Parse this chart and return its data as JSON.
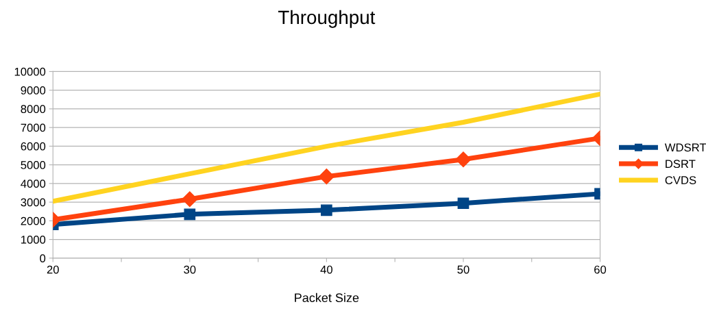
{
  "chart_data": {
    "type": "line",
    "title": "Throughput",
    "xlabel": "Packet Size",
    "x": [
      20,
      30,
      40,
      50,
      60
    ],
    "series": [
      {
        "name": "WDSRT",
        "color": "#004586",
        "marker": "square",
        "values": [
          1800,
          2350,
          2570,
          2940,
          3450
        ]
      },
      {
        "name": "DSRT",
        "color": "#ff420e",
        "marker": "diamond",
        "values": [
          2060,
          3160,
          4375,
          5290,
          6430
        ]
      },
      {
        "name": "CVDS",
        "color": "#ffd320",
        "marker": "none",
        "values": [
          3050,
          4520,
          5990,
          7280,
          8790
        ]
      }
    ],
    "xlim": [
      20,
      60
    ],
    "xticks": [
      20,
      {
        "value": 25,
        "label": null
      },
      30,
      {
        "value": 35,
        "label": null
      },
      40,
      {
        "value": 45,
        "label": null
      },
      50,
      {
        "value": 55,
        "label": null
      },
      60
    ],
    "ylim": [
      0,
      10000
    ],
    "yticks": [
      0,
      1000,
      2000,
      3000,
      4000,
      5000,
      6000,
      7000,
      8000,
      9000,
      10000
    ],
    "grid": "y",
    "legend": "right",
    "line_style": "solid"
  }
}
